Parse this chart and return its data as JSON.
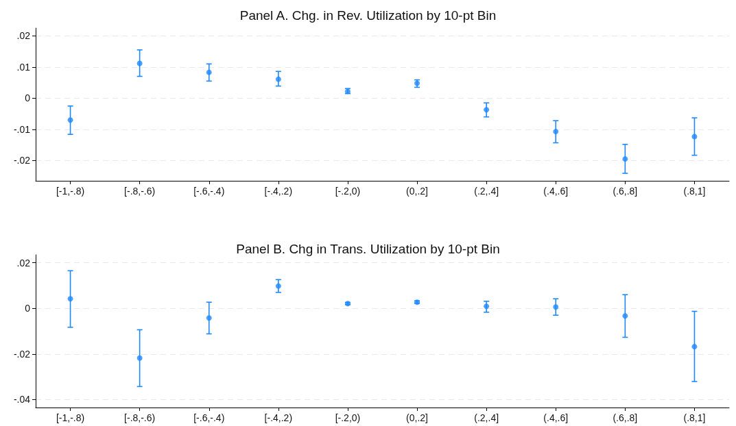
{
  "chart_data": [
    {
      "type": "scatter",
      "title": "Panel A. Chg. in Rev. Utilization by 10-pt Bin",
      "categories": [
        "[-1,-.8)",
        "[-.8,-.6)",
        "[-.6,-.4)",
        "[-.4,.2)",
        "[-.2,0)",
        "(0,.2]",
        "(.2,.4]",
        "(.4,.6]",
        "(.6,.8]",
        "(.8,1]"
      ],
      "series": [
        {
          "color": "#1e88ff",
          "values": [
            -0.007,
            0.0112,
            0.0083,
            0.0061,
            0.0022,
            0.0048,
            -0.0037,
            -0.0107,
            -0.0195,
            -0.0123
          ],
          "errors": [
            [
              -0.0116,
              -0.0025
            ],
            [
              0.007,
              0.0155
            ],
            [
              0.0055,
              0.011
            ],
            [
              0.0039,
              0.0086
            ],
            [
              0.0015,
              0.0031
            ],
            [
              0.0035,
              0.0059
            ],
            [
              -0.006,
              -0.0015
            ],
            [
              -0.0143,
              -0.0072
            ],
            [
              -0.0241,
              -0.0148
            ],
            [
              -0.0183,
              -0.0063
            ]
          ]
        }
      ],
      "ylim": [
        -0.0265,
        0.0225
      ],
      "yticks": [
        {
          "value": -0.02,
          "label": "-.02"
        },
        {
          "value": -0.01,
          "label": "-.01"
        },
        0,
        {
          "value": 0.01,
          "label": ".01"
        },
        {
          "value": 0.02,
          "label": ".02"
        }
      ],
      "grid": "y",
      "marker": "circle"
    },
    {
      "type": "scatter",
      "title": "Panel B. Chg in Trans. Utilization by 10-pt Bin",
      "categories": [
        "[-1,-.8)",
        "[-.8,-.6)",
        "[-.6,-.4)",
        "[-.4,.2)",
        "[-.2,0)",
        "(0,.2]",
        "(.2,.4]",
        "(.4,.6]",
        "(.6,.8]",
        "(.8,1]"
      ],
      "series": [
        {
          "color": "#1e88ff",
          "values": [
            0.0042,
            -0.0218,
            -0.0042,
            0.0098,
            0.0021,
            0.0027,
            0.0009,
            0.0006,
            -0.0033,
            -0.0168
          ],
          "errors": [
            [
              -0.0083,
              0.0165
            ],
            [
              -0.0343,
              -0.0094
            ],
            [
              -0.0112,
              0.0027
            ],
            [
              0.007,
              0.0126
            ],
            [
              0.0016,
              0.0026
            ],
            [
              0.0022,
              0.0033
            ],
            [
              -0.0017,
              0.0031
            ],
            [
              -0.003,
              0.0042
            ],
            [
              -0.0127,
              0.006
            ],
            [
              -0.0321,
              -0.0013
            ]
          ]
        }
      ],
      "ylim": [
        -0.0435,
        0.0235
      ],
      "yticks": [
        {
          "value": -0.04,
          "label": "-.04"
        },
        {
          "value": -0.02,
          "label": "-.02"
        },
        0,
        {
          "value": 0.02,
          "label": ".02"
        }
      ],
      "grid": "y",
      "marker": "circle"
    }
  ]
}
